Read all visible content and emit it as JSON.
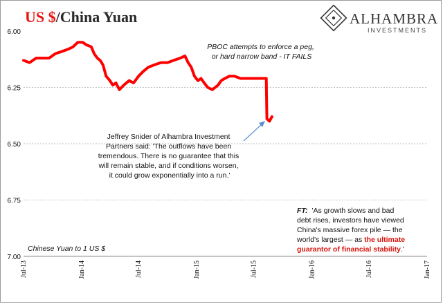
{
  "header": {
    "title_red": "US $",
    "title_dark": "/China Yuan"
  },
  "logo": {
    "name": "ALHAMBRA",
    "tagline": "INVESTMENTS",
    "icon": "alhambra-diamond-logo"
  },
  "annotations": {
    "pboc": [
      "PBOC attempts to enforce a peg,",
      "or hard narrow band - IT FAILS"
    ],
    "snider": [
      "Jeffrey Snider of Alhambra Investment",
      "Partners said: 'The outflows have been",
      "tremendous. There is no guarantee that this",
      "will remain stable, and if conditions worsen,",
      "it could grow exponentially into a run.'"
    ],
    "ft_label": "FT:",
    "ft_line1": "'As growth slows and bad",
    "ft_line2": "debt rises, investors have viewed",
    "ft_line3": "China's massive forex pile — the",
    "ft_line4_pre": "world's largest — as ",
    "ft_line4_red": "the ultimate",
    "ft_line5_red": "guarantor of financial stability",
    "ft_line5_post": ".'",
    "corner": "Chinese Yuan to 1 US $"
  },
  "colors": {
    "series": "#ff0000",
    "title_red": "#e8150f",
    "grid": "#bdbdbd",
    "arrow": "#5b8fd0"
  },
  "chart_data": {
    "type": "line",
    "y_inverted": true,
    "ylim": [
      6.0,
      7.0
    ],
    "yticks": [
      "6.00",
      "6.25",
      "6.50",
      "6.75",
      "7.00"
    ],
    "xlim": [
      "2013-07-01",
      "2017-01-01"
    ],
    "xticks": [
      "Jul-13",
      "Jan-14",
      "Jul-14",
      "Jan-15",
      "Jul-15",
      "Jan-16",
      "Jul-16",
      "Jan-17"
    ],
    "grid": "horizontal",
    "series": [
      {
        "x": [
          "2013-07-01",
          "2013-07-20",
          "2013-08-10",
          "2013-09-01",
          "2013-09-20",
          "2013-10-10",
          "2013-11-01",
          "2013-11-20",
          "2013-12-05",
          "2013-12-20",
          "2014-01-05",
          "2014-01-15",
          "2014-02-01",
          "2014-02-10",
          "2014-02-20",
          "2014-03-01",
          "2014-03-10",
          "2014-03-20",
          "2014-04-01",
          "2014-04-10",
          "2014-04-20",
          "2014-05-01",
          "2014-05-15",
          "2014-06-01",
          "2014-06-15",
          "2014-07-01",
          "2014-07-15",
          "2014-08-01",
          "2014-08-20",
          "2014-09-10",
          "2014-10-01",
          "2014-10-20",
          "2014-11-10",
          "2014-11-25",
          "2014-12-05",
          "2014-12-15",
          "2014-12-25",
          "2015-01-05",
          "2015-01-15",
          "2015-01-25",
          "2015-02-05",
          "2015-02-20",
          "2015-03-01",
          "2015-03-10",
          "2015-03-20",
          "2015-04-01",
          "2015-04-15",
          "2015-05-01",
          "2015-05-20",
          "2015-06-10",
          "2015-07-01",
          "2015-07-20",
          "2015-08-05",
          "2015-08-10",
          "2015-08-11",
          "2015-08-12",
          "2015-08-20",
          "2015-08-28"
        ],
        "y": [
          6.13,
          6.14,
          6.12,
          6.12,
          6.12,
          6.1,
          6.09,
          6.08,
          6.07,
          6.05,
          6.05,
          6.06,
          6.07,
          6.1,
          6.12,
          6.13,
          6.15,
          6.2,
          6.22,
          6.24,
          6.23,
          6.26,
          6.24,
          6.22,
          6.23,
          6.2,
          6.18,
          6.16,
          6.15,
          6.14,
          6.14,
          6.13,
          6.12,
          6.11,
          6.14,
          6.16,
          6.2,
          6.22,
          6.21,
          6.23,
          6.25,
          6.26,
          6.25,
          6.24,
          6.22,
          6.21,
          6.2,
          6.2,
          6.21,
          6.21,
          6.21,
          6.21,
          6.21,
          6.21,
          6.32,
          6.39,
          6.4,
          6.38
        ]
      }
    ]
  }
}
